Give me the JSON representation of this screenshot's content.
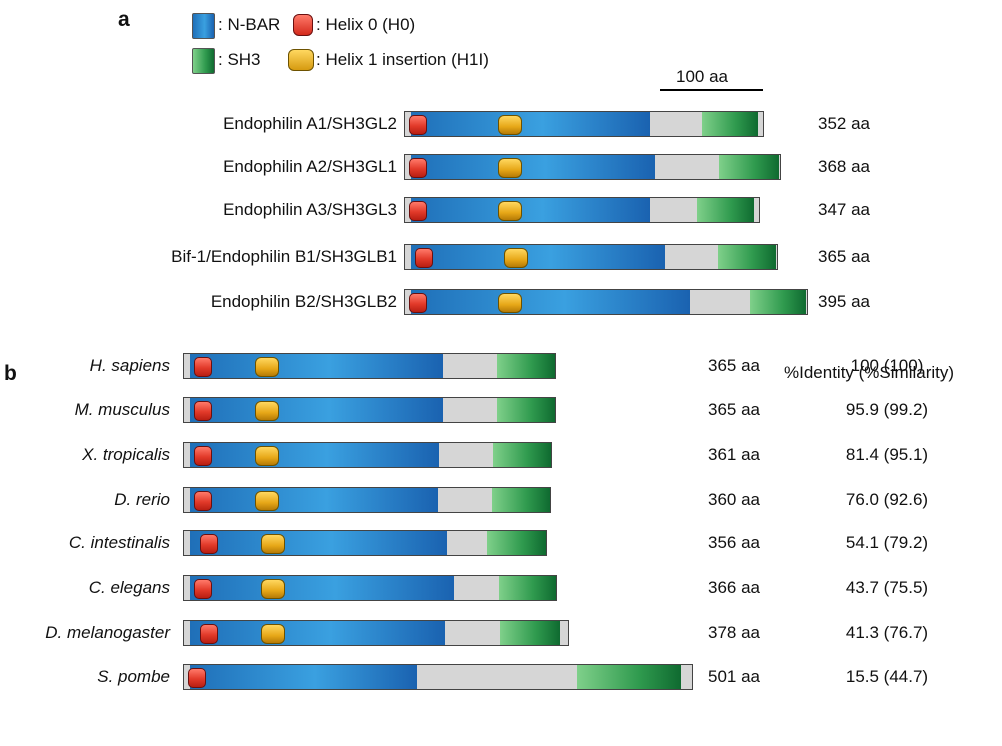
{
  "panel_a": {
    "letter": "a",
    "legend": {
      "nbar": ": N-BAR",
      "helix0": ": Helix 0 (H0)",
      "sh3": ": SH3",
      "h1i": ": Helix 1 insertion (H1I)"
    },
    "scale_label": "100 aa",
    "proteins": [
      {
        "name": "Endophilin A1/SH3GL2",
        "length": "352 aa"
      },
      {
        "name": "Endophilin A2/SH3GL1",
        "length": "368 aa"
      },
      {
        "name": "Endophilin A3/SH3GL3",
        "length": "347 aa"
      },
      {
        "name": "Bif-1/Endophilin B1/SH3GLB1",
        "length": "365 aa"
      },
      {
        "name": "Endophilin B2/SH3GLB2",
        "length": "395 aa"
      }
    ]
  },
  "panel_b": {
    "letter": "b",
    "identity_header": "%Identity (%Similarity)",
    "species": [
      {
        "name": "H. sapiens",
        "length": "365 aa",
        "identity": "100 (100)"
      },
      {
        "name": "M. musculus",
        "length": "365 aa",
        "identity": "95.9 (99.2)"
      },
      {
        "name": "X. tropicalis",
        "length": "361 aa",
        "identity": "81.4 (95.1)"
      },
      {
        "name": "D. rerio",
        "length": "360 aa",
        "identity": "76.0 (92.6)"
      },
      {
        "name": "C. intestinalis",
        "length": "356 aa",
        "identity": "54.1 (79.2)"
      },
      {
        "name": "C. elegans",
        "length": "366 aa",
        "identity": "43.7 (75.5)"
      },
      {
        "name": "D. melanogaster",
        "length": "378 aa",
        "identity": "41.3 (76.7)"
      },
      {
        "name": "S. pombe",
        "length": "501 aa",
        "identity": "15.5 (44.7)"
      }
    ]
  },
  "colors": {
    "nbar": "#2a8ad0",
    "sh3": "#3aa55a",
    "helix0": "#e23a2a",
    "h1i": "#e6a717",
    "linker": "#d6d6d6"
  }
}
